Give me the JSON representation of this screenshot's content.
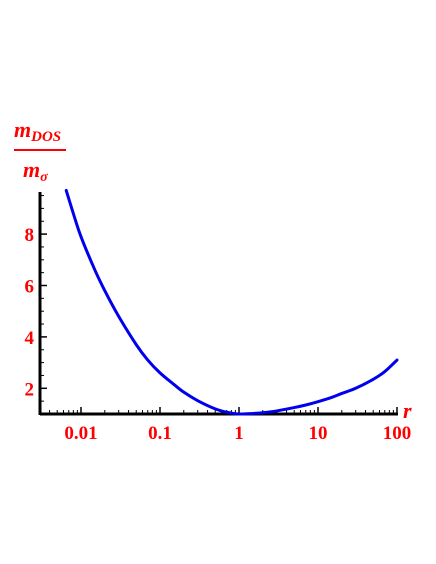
{
  "chart_data": {
    "type": "line",
    "x_scale": "log",
    "xlim": [
      0.002,
      100
    ],
    "ylim": [
      1,
      9.7
    ],
    "x_ticks": [
      {
        "value": 0.01,
        "label": "0.01"
      },
      {
        "value": 0.1,
        "label": "0.1"
      },
      {
        "value": 1,
        "label": "1"
      },
      {
        "value": 10,
        "label": "10"
      },
      {
        "value": 100,
        "label": "100"
      }
    ],
    "y_ticks": [
      {
        "value": 2,
        "label": "2"
      },
      {
        "value": 4,
        "label": "4"
      },
      {
        "value": 6,
        "label": "6"
      },
      {
        "value": 8,
        "label": "8"
      }
    ],
    "xlabel": "r",
    "ylabel": {
      "numerator": "m",
      "numerator_subscript": "DOS",
      "denominator": "m",
      "denominator_subscript": "σ"
    },
    "grid": false,
    "series": [
      {
        "color": "#0000ee",
        "x": [
          0.0065,
          0.008,
          0.01,
          0.015,
          0.02,
          0.03,
          0.05,
          0.07,
          0.1,
          0.15,
          0.2,
          0.3,
          0.5,
          0.7,
          1,
          1.5,
          2,
          3,
          5,
          7,
          10,
          15,
          20,
          30,
          50,
          70,
          100
        ],
        "y": [
          9.7,
          8.8,
          7.9,
          6.6,
          5.8,
          4.8,
          3.7,
          3.1,
          2.6,
          2.15,
          1.85,
          1.52,
          1.2,
          1.07,
          1.0,
          1.02,
          1.05,
          1.12,
          1.25,
          1.35,
          1.48,
          1.65,
          1.8,
          2.0,
          2.35,
          2.65,
          3.1
        ]
      }
    ],
    "axis_color": "#000000",
    "label_color": "#ff0000"
  }
}
